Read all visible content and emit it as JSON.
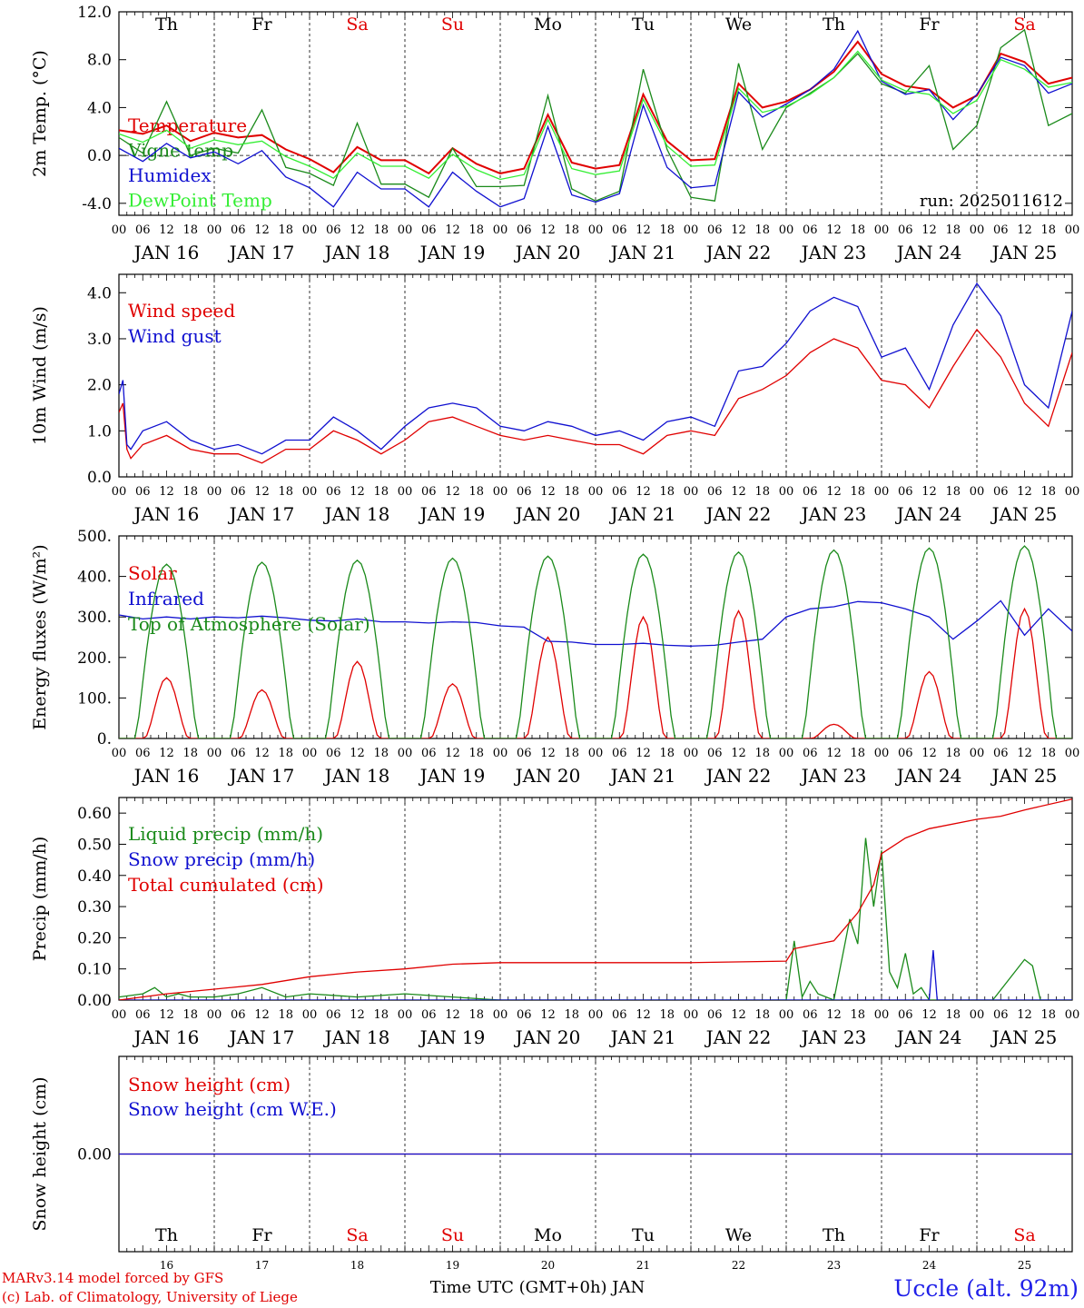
{
  "colors": {
    "red": "#e00000",
    "green": "#1a8a1a",
    "blue": "#1010d0",
    "lightgreen": "#33ee33",
    "black": "#000000",
    "station": "#2020e8"
  },
  "days": [
    {
      "name": "Th",
      "date": "JAN 16",
      "num": "16",
      "weekend": false
    },
    {
      "name": "Fr",
      "date": "JAN 17",
      "num": "17",
      "weekend": false
    },
    {
      "name": "Sa",
      "date": "JAN 18",
      "num": "18",
      "weekend": true
    },
    {
      "name": "Su",
      "date": "JAN 19",
      "num": "19",
      "weekend": true
    },
    {
      "name": "Mo",
      "date": "JAN 20",
      "num": "20",
      "weekend": false
    },
    {
      "name": "Tu",
      "date": "JAN 21",
      "num": "21",
      "weekend": false
    },
    {
      "name": "We",
      "date": "JAN 22",
      "num": "22",
      "weekend": false
    },
    {
      "name": "Th",
      "date": "JAN 23",
      "num": "23",
      "weekend": false
    },
    {
      "name": "Fr",
      "date": "JAN 24",
      "num": "24",
      "weekend": false
    },
    {
      "name": "Sa",
      "date": "JAN 25",
      "num": "25",
      "weekend": true
    }
  ],
  "hour_ticks": [
    "00",
    "06",
    "12",
    "18"
  ],
  "final_hour_tick": "00",
  "footer": {
    "model_line": "MARv3.14 model forced by GFS",
    "credit_line": "(c) Lab. of Climatology, University of Liege",
    "axis_title": "Time UTC (GMT+0h) JAN",
    "station": "Uccle (alt. 92m)"
  },
  "chart_data": [
    {
      "type": "line",
      "ylabel": "2m Temp. (°C)",
      "ylim": [
        -5,
        12
      ],
      "yticks": [
        "-4.0",
        "0.0",
        "4.0",
        "8.0",
        "12.0"
      ],
      "ytick_values": [
        -4,
        0,
        4,
        8,
        12
      ],
      "zero_line": true,
      "run_label": "run: 2025011612",
      "x": [
        0,
        6,
        12,
        18,
        24,
        30,
        36,
        42,
        48,
        54,
        60,
        66,
        72,
        78,
        84,
        90,
        96,
        102,
        108,
        114,
        120,
        126,
        132,
        138,
        144,
        150,
        156,
        162,
        168,
        174,
        180,
        186,
        192,
        198,
        204,
        210,
        216,
        222,
        228,
        234,
        240
      ],
      "series": [
        {
          "name": "Temperature",
          "color": "red",
          "values": [
            2.1,
            1.8,
            2.5,
            1.2,
            1.9,
            1.5,
            1.7,
            0.5,
            -0.3,
            -1.4,
            0.7,
            -0.4,
            -0.4,
            -1.5,
            0.6,
            -0.7,
            -1.5,
            -1.1,
            3.4,
            -0.6,
            -1.1,
            -0.8,
            5.1,
            1.2,
            -0.4,
            -0.3,
            6.0,
            4.0,
            4.5,
            5.5,
            7.0,
            9.5,
            6.8,
            5.8,
            5.5,
            4.0,
            5.0,
            8.5,
            7.8,
            6.0,
            6.5
          ]
        },
        {
          "name": "Vigne temp",
          "color": "green",
          "values": [
            1.5,
            0.2,
            4.5,
            0.0,
            0.6,
            0.2,
            3.8,
            -1.0,
            -1.5,
            -2.5,
            2.7,
            -2.4,
            -2.4,
            -3.5,
            0.6,
            -2.6,
            -2.6,
            -2.5,
            5.0,
            -2.8,
            -3.8,
            -3.0,
            7.2,
            0.5,
            -3.5,
            -3.8,
            7.7,
            0.5,
            4.0,
            5.2,
            6.5,
            8.5,
            6.0,
            5.2,
            7.5,
            0.5,
            2.5,
            9.0,
            10.5,
            2.5,
            3.5
          ]
        },
        {
          "name": "Humidex",
          "color": "blue",
          "values": [
            0.6,
            -0.5,
            1.0,
            -0.2,
            0.3,
            -0.7,
            0.4,
            -1.8,
            -2.7,
            -4.3,
            -1.4,
            -2.8,
            -2.8,
            -4.3,
            -1.4,
            -3.0,
            -4.3,
            -3.6,
            2.4,
            -3.3,
            -3.9,
            -3.2,
            4.2,
            -1.0,
            -2.7,
            -2.5,
            5.3,
            3.2,
            4.3,
            5.5,
            7.2,
            10.4,
            6.2,
            5.1,
            5.5,
            3.0,
            5.1,
            8.2,
            7.5,
            5.2,
            6.0
          ]
        },
        {
          "name": "DewPoint Temp",
          "color": "lightgreen",
          "values": [
            1.8,
            1.1,
            2.1,
            0.6,
            1.3,
            0.9,
            1.2,
            -0.1,
            -0.9,
            -1.9,
            0.2,
            -0.9,
            -0.9,
            -1.9,
            0.1,
            -1.2,
            -2.0,
            -1.6,
            3.0,
            -1.1,
            -1.6,
            -1.3,
            4.7,
            0.8,
            -0.9,
            -0.8,
            5.6,
            3.6,
            4.1,
            5.1,
            6.5,
            8.7,
            6.3,
            5.4,
            5.1,
            3.5,
            4.6,
            8.0,
            7.2,
            5.7,
            6.1
          ]
        }
      ]
    },
    {
      "type": "line",
      "ylabel": "10m Wind (m/s)",
      "ylim": [
        0,
        4.4
      ],
      "yticks": [
        "0.0",
        "1.0",
        "2.0",
        "3.0",
        "4.0"
      ],
      "ytick_values": [
        0,
        1,
        2,
        3,
        4
      ],
      "x": [
        0,
        1,
        2,
        3,
        6,
        12,
        18,
        24,
        30,
        36,
        42,
        48,
        54,
        60,
        66,
        72,
        78,
        84,
        90,
        96,
        102,
        108,
        114,
        120,
        126,
        132,
        138,
        144,
        150,
        156,
        162,
        168,
        174,
        180,
        186,
        192,
        198,
        204,
        210,
        216,
        222,
        228,
        234,
        240
      ],
      "series": [
        {
          "name": "Wind speed",
          "color": "red",
          "values": [
            1.4,
            1.6,
            0.6,
            0.4,
            0.7,
            0.9,
            0.6,
            0.5,
            0.5,
            0.3,
            0.6,
            0.6,
            1.0,
            0.8,
            0.5,
            0.8,
            1.2,
            1.3,
            1.1,
            0.9,
            0.8,
            0.9,
            0.8,
            0.7,
            0.7,
            0.5,
            0.9,
            1.0,
            0.9,
            1.7,
            1.9,
            2.2,
            2.7,
            3.0,
            2.8,
            2.1,
            2.0,
            1.5,
            2.4,
            3.2,
            2.6,
            1.6,
            1.1,
            2.7
          ]
        },
        {
          "name": "Wind gust",
          "color": "blue",
          "values": [
            1.8,
            2.1,
            0.7,
            0.6,
            1.0,
            1.2,
            0.8,
            0.6,
            0.7,
            0.5,
            0.8,
            0.8,
            1.3,
            1.0,
            0.6,
            1.1,
            1.5,
            1.6,
            1.5,
            1.1,
            1.0,
            1.2,
            1.1,
            0.9,
            1.0,
            0.8,
            1.2,
            1.3,
            1.1,
            2.3,
            2.4,
            2.9,
            3.6,
            3.9,
            3.7,
            2.6,
            2.8,
            1.9,
            3.3,
            4.2,
            3.5,
            2.0,
            1.5,
            3.6
          ]
        }
      ]
    },
    {
      "type": "line",
      "ylabel": "Energy fluxes (W/m²)",
      "ylim": [
        0,
        500
      ],
      "yticks": [
        "0.",
        "100.",
        "200.",
        "300.",
        "400.",
        "500."
      ],
      "ytick_values": [
        0,
        100,
        200,
        300,
        400,
        500
      ],
      "series": [
        {
          "name": "Solar",
          "color": "red",
          "peaks": [
            150,
            120,
            190,
            135,
            250,
            300,
            315,
            35,
            165,
            320
          ]
        },
        {
          "name": "Infrared",
          "color": "blue",
          "x": [
            0,
            6,
            12,
            18,
            24,
            30,
            36,
            42,
            48,
            54,
            60,
            66,
            72,
            78,
            84,
            90,
            96,
            102,
            108,
            114,
            120,
            126,
            132,
            138,
            144,
            150,
            156,
            162,
            168,
            174,
            180,
            186,
            192,
            198,
            204,
            210,
            216,
            222,
            228,
            234,
            240
          ],
          "values": [
            305,
            295,
            300,
            295,
            300,
            298,
            302,
            298,
            292,
            290,
            295,
            288,
            288,
            285,
            288,
            286,
            278,
            275,
            240,
            238,
            232,
            232,
            235,
            230,
            228,
            230,
            238,
            245,
            300,
            320,
            325,
            338,
            335,
            320,
            300,
            245,
            290,
            340,
            255,
            320,
            265
          ]
        },
        {
          "name": "Top of Atmosphere (Solar)",
          "color": "green",
          "peaks": [
            430,
            435,
            440,
            445,
            450,
            455,
            460,
            465,
            470,
            475
          ]
        }
      ]
    },
    {
      "type": "line",
      "ylabel": "Precip (mm/h)",
      "ylim": [
        0,
        0.65
      ],
      "yticks": [
        "0.00",
        "0.10",
        "0.20",
        "0.30",
        "0.40",
        "0.50",
        "0.60"
      ],
      "ytick_values": [
        0,
        0.1,
        0.2,
        0.3,
        0.4,
        0.5,
        0.6
      ],
      "series": [
        {
          "name": "Liquid precip (mm/h)",
          "color": "green",
          "x": [
            0,
            6,
            9,
            12,
            15,
            18,
            24,
            30,
            36,
            42,
            48,
            60,
            72,
            84,
            96,
            120,
            168,
            170,
            172,
            174,
            176,
            180,
            184,
            186,
            188,
            190,
            192,
            194,
            196,
            198,
            200,
            202,
            204,
            206,
            210,
            214,
            220,
            228,
            230,
            232,
            234,
            240
          ],
          "values": [
            0.01,
            0.02,
            0.04,
            0.01,
            0.02,
            0.01,
            0.01,
            0.02,
            0.04,
            0.01,
            0.02,
            0.01,
            0.02,
            0.01,
            0.0,
            0.0,
            0.0,
            0.19,
            0.01,
            0.06,
            0.02,
            0.0,
            0.26,
            0.18,
            0.52,
            0.3,
            0.48,
            0.09,
            0.04,
            0.15,
            0.02,
            0.04,
            0.0,
            0.0,
            0.0,
            0.0,
            0.0,
            0.13,
            0.11,
            0.0,
            0.0,
            0.0
          ]
        },
        {
          "name": "Snow precip (mm/h)",
          "color": "blue",
          "x": [
            0,
            204,
            205,
            206,
            207,
            240
          ],
          "values": [
            0.0,
            0.0,
            0.16,
            0.0,
            0.0,
            0.0
          ]
        },
        {
          "name": "Total cumulated (cm)",
          "color": "red",
          "x": [
            0,
            12,
            24,
            36,
            48,
            60,
            72,
            84,
            96,
            108,
            120,
            132,
            144,
            168,
            170,
            180,
            186,
            190,
            192,
            198,
            204,
            216,
            222,
            228,
            240
          ],
          "values": [
            0.0,
            0.02,
            0.035,
            0.05,
            0.075,
            0.09,
            0.1,
            0.115,
            0.12,
            0.12,
            0.12,
            0.12,
            0.12,
            0.125,
            0.165,
            0.19,
            0.28,
            0.37,
            0.47,
            0.52,
            0.55,
            0.58,
            0.59,
            0.61,
            0.645
          ]
        }
      ]
    },
    {
      "type": "line",
      "ylabel": "Snow height (cm)",
      "ylim": [
        -1,
        1
      ],
      "yticks": [
        "0.00"
      ],
      "ytick_values": [
        0
      ],
      "series": [
        {
          "name": "Snow height (cm)",
          "color": "red",
          "x": [
            0,
            240
          ],
          "values": [
            0,
            0
          ]
        },
        {
          "name": "Snow height (cm W.E.)",
          "color": "blue",
          "x": [
            0,
            240
          ],
          "values": [
            0,
            0
          ]
        }
      ]
    }
  ]
}
